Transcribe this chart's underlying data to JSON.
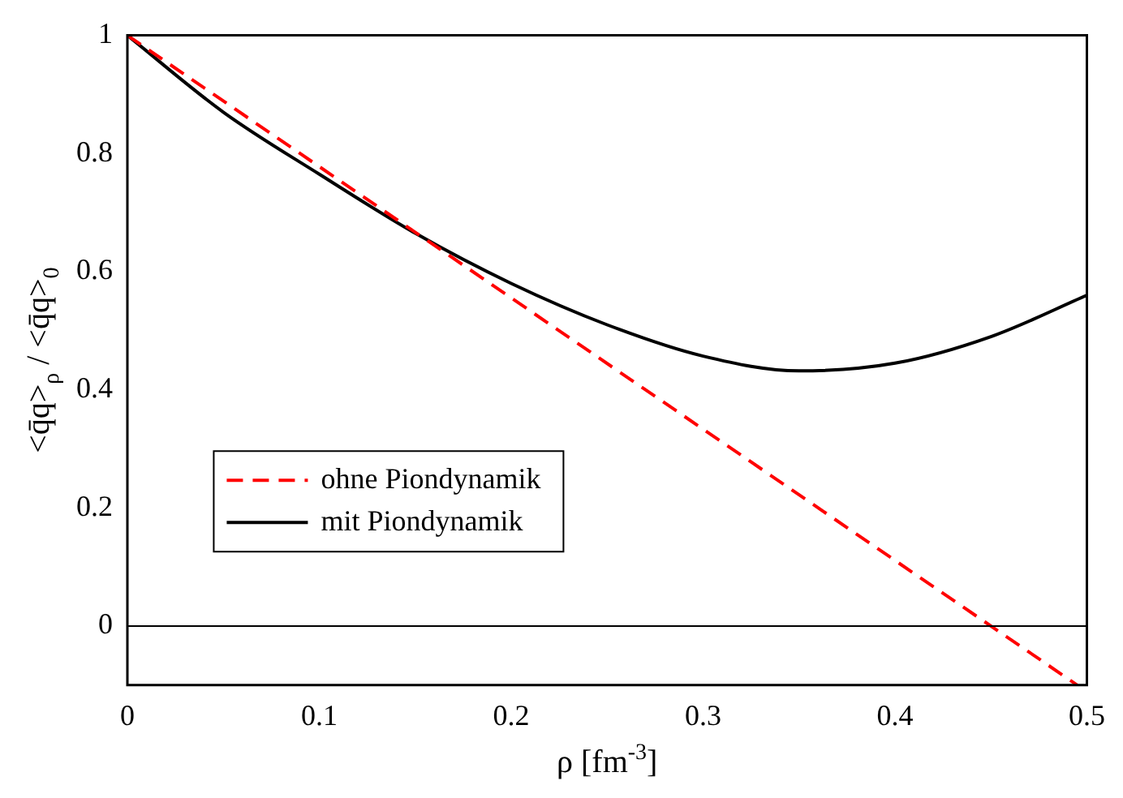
{
  "chart_data": {
    "type": "line",
    "xlabel": "ρ [fm$^{-3}$]",
    "ylabel": "<q̄q>$_{ρ}$ / <q̄q>$_{0}$",
    "xlim": [
      0,
      0.5
    ],
    "ylim": [
      -0.1,
      1
    ],
    "xticks": [
      0,
      0.1,
      0.2,
      0.3,
      0.4,
      0.5
    ],
    "yticks": [
      0,
      0.2,
      0.4,
      0.6,
      0.8,
      1
    ],
    "grid": false,
    "legend": "left",
    "marker": "none",
    "ref_lines": [
      {
        "axis": "y",
        "value": 0,
        "color": "#000000"
      }
    ],
    "series": [
      {
        "name": "ohne Piondynamik",
        "color": "#ff0000",
        "line_style": "dashed",
        "x": [
          0,
          0.495
        ],
        "values": [
          1,
          -0.1
        ]
      },
      {
        "name": "mit Piondynamik",
        "color": "#000000",
        "line_style": "solid",
        "x": [
          0,
          0.05,
          0.1,
          0.15,
          0.2,
          0.25,
          0.3,
          0.35,
          0.4,
          0.45,
          0.5
        ],
        "values": [
          1,
          0.87,
          0.765,
          0.665,
          0.58,
          0.51,
          0.457,
          0.432,
          0.445,
          0.49,
          0.56
        ]
      }
    ]
  }
}
